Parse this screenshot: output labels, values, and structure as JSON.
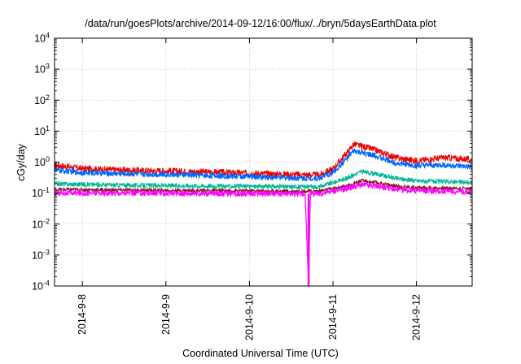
{
  "chart_data": {
    "type": "line",
    "title": "/data/run/goesPlots/archive/2014-09-12/16:00/flux/../bryn/5daysEarthData.plot",
    "xlabel": "Coordinated Universal Time (UTC)",
    "ylabel": "cGy/day",
    "y_scale": "log",
    "ylim": [
      0.0001,
      10000
    ],
    "xlim": [
      "2014-09-07 16:00",
      "2014-09-12 16:00"
    ],
    "y_tick_exponents": [
      "-4",
      "-3",
      "-2",
      "-1",
      "0",
      "1",
      "2",
      "3",
      "4"
    ],
    "x_ticks": [
      "2014-9-8",
      "2014-9-9",
      "2014-9-10",
      "2014-9-11",
      "2014-9-12"
    ],
    "grid": true,
    "legend": "none",
    "series": [
      {
        "color": "#ee0000",
        "points": [
          [
            "2014-09-07 16:00",
            0.8
          ],
          [
            "2014-09-08 00:00",
            0.62
          ],
          [
            "2014-09-08 12:00",
            0.55
          ],
          [
            "2014-09-09 00:00",
            0.52
          ],
          [
            "2014-09-09 12:00",
            0.48
          ],
          [
            "2014-09-10 00:00",
            0.44
          ],
          [
            "2014-09-10 12:00",
            0.4
          ],
          [
            "2014-09-10 20:00",
            0.38
          ],
          [
            "2014-09-11 00:00",
            0.6
          ],
          [
            "2014-09-11 04:00",
            2.0
          ],
          [
            "2014-09-11 06:00",
            3.8
          ],
          [
            "2014-09-11 08:00",
            3.3
          ],
          [
            "2014-09-11 12:00",
            2.5
          ],
          [
            "2014-09-11 18:00",
            1.4
          ],
          [
            "2014-09-12 00:00",
            1.1
          ],
          [
            "2014-09-12 08:00",
            1.4
          ],
          [
            "2014-09-12 16:00",
            1.2
          ]
        ]
      },
      {
        "color": "#0066ff",
        "points": [
          [
            "2014-09-07 16:00",
            0.55
          ],
          [
            "2014-09-08 00:00",
            0.46
          ],
          [
            "2014-09-08 12:00",
            0.42
          ],
          [
            "2014-09-09 00:00",
            0.4
          ],
          [
            "2014-09-09 12:00",
            0.37
          ],
          [
            "2014-09-10 00:00",
            0.34
          ],
          [
            "2014-09-10 12:00",
            0.31
          ],
          [
            "2014-09-10 20:00",
            0.3
          ],
          [
            "2014-09-11 00:00",
            0.45
          ],
          [
            "2014-09-11 04:00",
            1.3
          ],
          [
            "2014-09-11 06:00",
            2.3
          ],
          [
            "2014-09-11 08:00",
            2.0
          ],
          [
            "2014-09-11 12:00",
            1.6
          ],
          [
            "2014-09-11 18:00",
            0.95
          ],
          [
            "2014-09-12 00:00",
            0.75
          ],
          [
            "2014-09-12 08:00",
            0.8
          ],
          [
            "2014-09-12 16:00",
            0.68
          ]
        ]
      },
      {
        "color": "#00b894",
        "points": [
          [
            "2014-09-07 16:00",
            0.2
          ],
          [
            "2014-09-08 12:00",
            0.18
          ],
          [
            "2014-09-09 12:00",
            0.17
          ],
          [
            "2014-09-10 12:00",
            0.16
          ],
          [
            "2014-09-10 20:00",
            0.16
          ],
          [
            "2014-09-11 04:00",
            0.3
          ],
          [
            "2014-09-11 08:00",
            0.5
          ],
          [
            "2014-09-11 12:00",
            0.42
          ],
          [
            "2014-09-11 18:00",
            0.3
          ],
          [
            "2014-09-12 00:00",
            0.25
          ],
          [
            "2014-09-12 16:00",
            0.22
          ]
        ]
      },
      {
        "color": "#8b1a2b",
        "points": [
          [
            "2014-09-07 16:00",
            0.13
          ],
          [
            "2014-09-08 12:00",
            0.125
          ],
          [
            "2014-09-09 12:00",
            0.12
          ],
          [
            "2014-09-10 12:00",
            0.115
          ],
          [
            "2014-09-10 20:00",
            0.115
          ],
          [
            "2014-09-11 04:00",
            0.17
          ],
          [
            "2014-09-11 08:00",
            0.25
          ],
          [
            "2014-09-11 12:00",
            0.22
          ],
          [
            "2014-09-11 18:00",
            0.17
          ],
          [
            "2014-09-12 00:00",
            0.15
          ],
          [
            "2014-09-12 16:00",
            0.14
          ]
        ]
      },
      {
        "color": "#ff00ff",
        "points": [
          [
            "2014-09-07 16:00",
            0.1
          ],
          [
            "2014-09-08 12:00",
            0.1
          ],
          [
            "2014-09-09 12:00",
            0.097
          ],
          [
            "2014-09-10 12:00",
            0.095
          ],
          [
            "2014-09-10 16:00",
            0.095
          ],
          [
            "2014-09-10 17:00",
            0.0001
          ],
          [
            "2014-09-10 17:30",
            0.095
          ],
          [
            "2014-09-10 20:00",
            0.095
          ],
          [
            "2014-09-11 04:00",
            0.14
          ],
          [
            "2014-09-11 08:00",
            0.19
          ],
          [
            "2014-09-11 12:00",
            0.17
          ],
          [
            "2014-09-11 18:00",
            0.13
          ],
          [
            "2014-09-12 00:00",
            0.12
          ],
          [
            "2014-09-12 16:00",
            0.11
          ]
        ]
      }
    ]
  }
}
